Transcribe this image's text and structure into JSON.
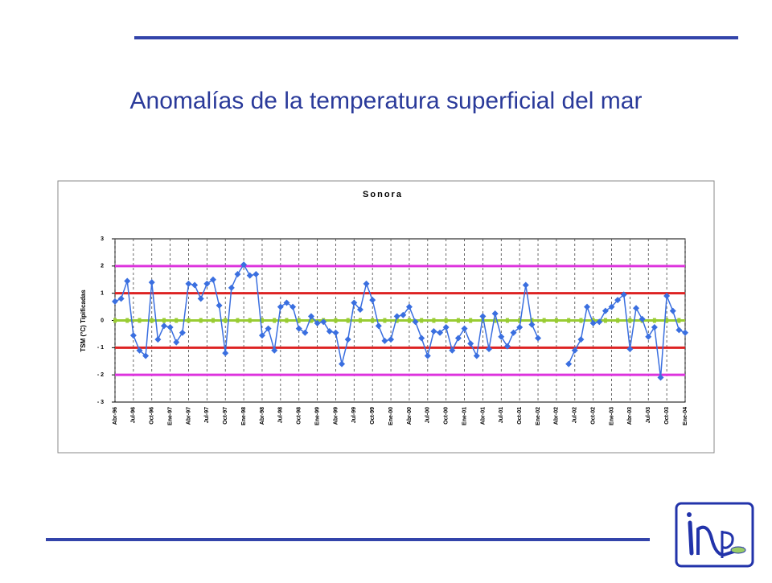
{
  "header": {
    "title": "Anomalías de la temperatura superficial del mar"
  },
  "chart_data": {
    "type": "line",
    "title": "Sonora",
    "y_label": "TSM (°C) Tipificadas",
    "categories": [
      "Abr-96",
      null,
      null,
      "Jul-96",
      null,
      null,
      "Oct-96",
      null,
      null,
      "Ene-97",
      null,
      null,
      "Abr-97",
      null,
      null,
      "Jul-97",
      null,
      null,
      "Oct-97",
      null,
      null,
      "Ene-98",
      null,
      null,
      "Abr-98",
      null,
      null,
      "Jul-98",
      null,
      null,
      "Oct-98",
      null,
      null,
      "Ene-99",
      null,
      null,
      "Abr-99",
      null,
      null,
      "Jul-99",
      null,
      null,
      "Oct-99",
      null,
      null,
      "Ene-00",
      null,
      null,
      "Abr-00",
      null,
      null,
      "Jul-00",
      null,
      null,
      "Oct-00",
      null,
      null,
      "Ene-01",
      null,
      null,
      "Abr-01",
      null,
      null,
      "Jul-01",
      null,
      null,
      "Oct-01",
      null,
      null,
      "Ene-02",
      null,
      null,
      "Abr-02",
      null,
      null,
      "Jul-02",
      null,
      null,
      "Oct-02",
      null,
      null,
      "Ene-03",
      null,
      null,
      "Abr-03",
      null,
      null,
      "Jul-03",
      null,
      null,
      "Oct-03",
      null,
      null,
      "Ene-04"
    ],
    "series": [
      {
        "color": "#3a6fe0",
        "values": [
          0.7,
          0.8,
          1.45,
          -0.55,
          -1.1,
          -1.3,
          1.4,
          -0.7,
          -0.2,
          -0.25,
          -0.8,
          -0.45,
          1.35,
          1.3,
          0.8,
          1.35,
          1.5,
          0.55,
          -1.2,
          1.2,
          1.7,
          2.05,
          1.65,
          1.7,
          -0.55,
          -0.3,
          -1.1,
          0.5,
          0.65,
          0.5,
          -0.3,
          -0.45,
          0.15,
          -0.1,
          -0.05,
          -0.4,
          -0.45,
          -1.6,
          -0.7,
          0.65,
          0.4,
          1.35,
          0.75,
          -0.2,
          -0.75,
          -0.7,
          0.15,
          0.2,
          0.5,
          -0.05,
          -0.65,
          -1.3,
          -0.4,
          -0.45,
          -0.25,
          -1.1,
          -0.65,
          -0.3,
          -0.85,
          -1.3,
          0.15,
          -1.05,
          0.25,
          -0.6,
          -0.95,
          -0.45,
          -0.25,
          1.3,
          -0.15,
          -0.65,
          null,
          null,
          null,
          null,
          -1.6,
          -1.1,
          -0.7,
          0.5,
          -0.1,
          -0.05,
          0.35,
          0.5,
          0.75,
          0.95,
          -1.05,
          0.45,
          0.05,
          -0.6,
          -0.25,
          -2.1,
          0.9,
          0.35,
          -0.35,
          -0.45
        ]
      }
    ],
    "reference_lines": [
      {
        "value": 0,
        "color": "#99cc33"
      },
      {
        "value": 1,
        "color": "#dd2222"
      },
      {
        "value": -1,
        "color": "#dd2222"
      },
      {
        "value": 2,
        "color": "#dd33dd"
      },
      {
        "value": -2,
        "color": "#dd33dd"
      }
    ],
    "ylim": [
      -3,
      3
    ],
    "yticks": [
      {
        "value": -3,
        "label": "- 3"
      },
      {
        "value": -2,
        "label": "- 2"
      },
      {
        "value": -1,
        "label": "- 1"
      },
      0,
      1,
      2,
      3
    ]
  }
}
